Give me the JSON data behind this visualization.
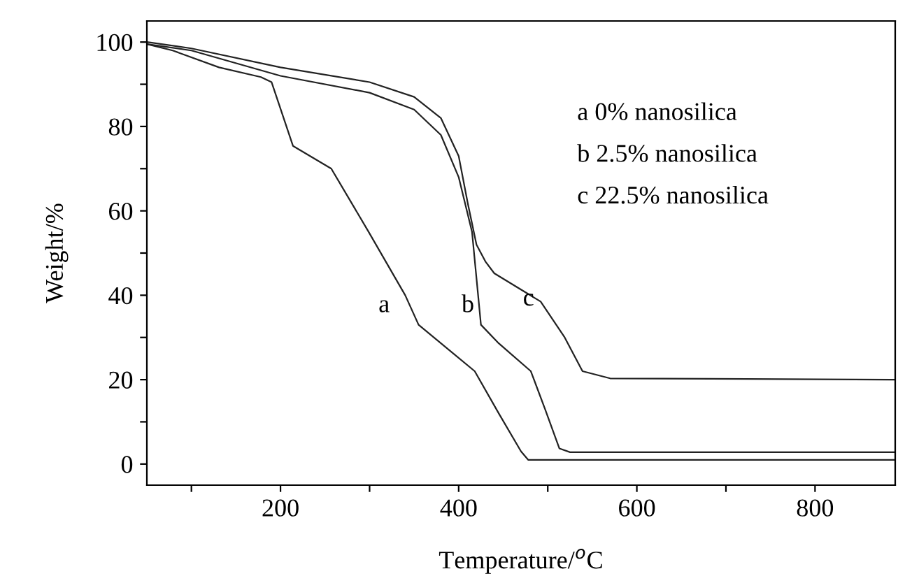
{
  "chart_data": {
    "type": "line",
    "xlabel": "Temperature/$^{o}$C",
    "ylabel": "Weight/%",
    "xlim": [
      50,
      890
    ],
    "ylim": [
      -5,
      105
    ],
    "xticks": [
      {
        "value": 100,
        "label": null
      },
      200,
      {
        "value": 300,
        "label": null
      },
      400,
      {
        "value": 500,
        "label": null
      },
      600,
      {
        "value": 700,
        "label": null
      },
      800
    ],
    "yticks": [
      0,
      {
        "value": 10,
        "label": null
      },
      20,
      {
        "value": 30,
        "label": null
      },
      40,
      {
        "value": 50,
        "label": null
      },
      60,
      {
        "value": 70,
        "label": null
      },
      80,
      {
        "value": 90,
        "label": null
      },
      100
    ],
    "grid": false,
    "legend": false,
    "marker": "none",
    "line_style": "solid",
    "series": [
      {
        "color": "#222222",
        "x": [
          50,
          79,
          131,
          178,
          190,
          214,
          257,
          299,
          340,
          355,
          418,
          445,
          470,
          478,
          890
        ],
        "values": [
          99.5,
          98,
          94,
          91.7,
          90.5,
          75.4,
          70,
          55,
          40,
          33,
          22,
          12,
          3,
          1,
          1
        ]
      },
      {
        "color": "#222222",
        "x": [
          50,
          100,
          200,
          300,
          350,
          380,
          400,
          415,
          425,
          445,
          481,
          497,
          513,
          525,
          890
        ],
        "values": [
          99.5,
          98,
          92,
          88,
          84,
          78,
          68,
          55,
          33,
          28.6,
          22,
          13,
          3.7,
          2.8,
          2.8
        ]
      },
      {
        "color": "#222222",
        "x": [
          50,
          100,
          200,
          300,
          350,
          380,
          400,
          410,
          420,
          425,
          430,
          440,
          492,
          519,
          539,
          570,
          890
        ],
        "values": [
          100,
          98.5,
          94,
          90.5,
          87,
          82,
          73,
          62,
          52,
          50,
          48,
          45.2,
          38.5,
          30,
          22,
          20.3,
          20
        ]
      }
    ],
    "annotations": [
      "a",
      "b",
      "c",
      "a 0% nanosilica",
      "b 2.5% nanosilica",
      "c 22.5% nanosilica"
    ]
  }
}
